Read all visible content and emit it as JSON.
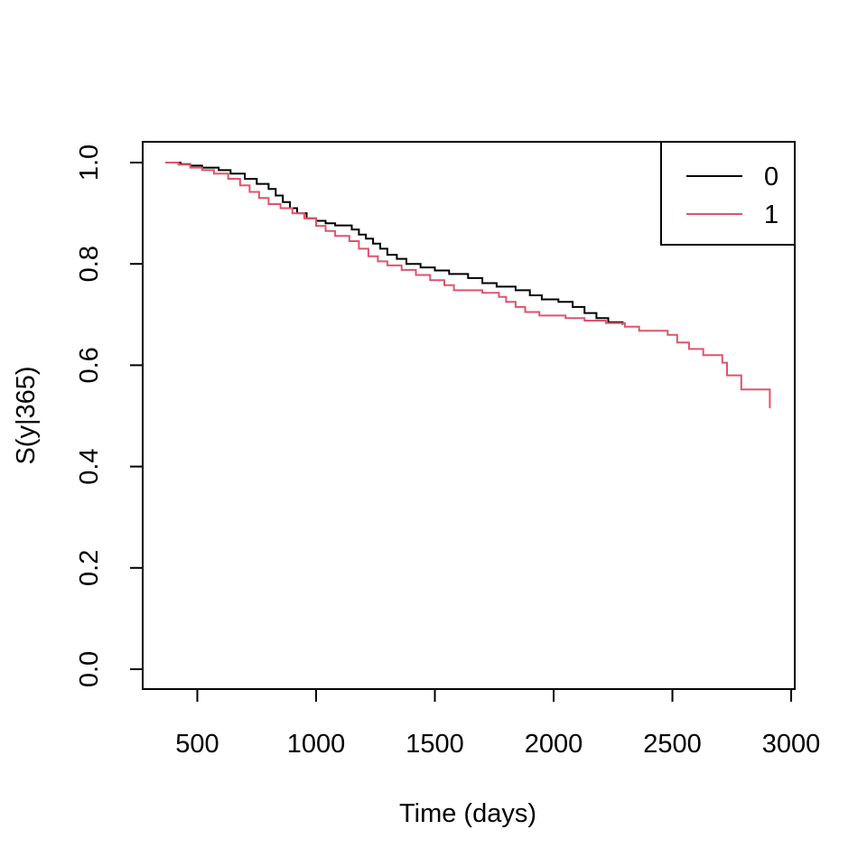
{
  "chart_data": {
    "type": "line",
    "title": "",
    "xlabel": "Time (days)",
    "ylabel": "S(y|365)",
    "xlim": [
      365,
      2920
    ],
    "ylim": [
      0,
      1
    ],
    "x_ticks": [
      500,
      1000,
      1500,
      2000,
      2500,
      3000
    ],
    "y_ticks": [
      0.0,
      0.2,
      0.4,
      0.6,
      0.8,
      1.0
    ],
    "y_tick_labels": [
      "0.0",
      "0.2",
      "0.4",
      "0.6",
      "0.8",
      "1.0"
    ],
    "grid": false,
    "legend": {
      "position": "top-right",
      "entries": [
        "0",
        "1"
      ]
    },
    "series": [
      {
        "name": "0",
        "color": "#000000",
        "step": true,
        "points": [
          [
            365,
            1.0
          ],
          [
            430,
            0.997
          ],
          [
            470,
            0.994
          ],
          [
            520,
            0.99
          ],
          [
            590,
            0.985
          ],
          [
            640,
            0.978
          ],
          [
            700,
            0.968
          ],
          [
            750,
            0.958
          ],
          [
            800,
            0.948
          ],
          [
            830,
            0.935
          ],
          [
            860,
            0.922
          ],
          [
            890,
            0.91
          ],
          [
            920,
            0.9
          ],
          [
            960,
            0.89
          ],
          [
            1000,
            0.885
          ],
          [
            1040,
            0.88
          ],
          [
            1080,
            0.876
          ],
          [
            1150,
            0.868
          ],
          [
            1180,
            0.858
          ],
          [
            1210,
            0.85
          ],
          [
            1240,
            0.84
          ],
          [
            1270,
            0.83
          ],
          [
            1300,
            0.818
          ],
          [
            1340,
            0.81
          ],
          [
            1380,
            0.8
          ],
          [
            1440,
            0.793
          ],
          [
            1500,
            0.787
          ],
          [
            1560,
            0.78
          ],
          [
            1640,
            0.772
          ],
          [
            1700,
            0.762
          ],
          [
            1760,
            0.755
          ],
          [
            1840,
            0.748
          ],
          [
            1900,
            0.738
          ],
          [
            1950,
            0.73
          ],
          [
            2020,
            0.725
          ],
          [
            2080,
            0.715
          ],
          [
            2130,
            0.703
          ],
          [
            2180,
            0.693
          ],
          [
            2230,
            0.685
          ],
          [
            2290,
            0.68
          ]
        ]
      },
      {
        "name": "1",
        "color": "#DF536B",
        "step": true,
        "points": [
          [
            365,
            1.0
          ],
          [
            420,
            0.996
          ],
          [
            470,
            0.99
          ],
          [
            520,
            0.985
          ],
          [
            570,
            0.978
          ],
          [
            630,
            0.968
          ],
          [
            680,
            0.955
          ],
          [
            720,
            0.942
          ],
          [
            760,
            0.93
          ],
          [
            800,
            0.918
          ],
          [
            850,
            0.91
          ],
          [
            900,
            0.9
          ],
          [
            950,
            0.89
          ],
          [
            1000,
            0.875
          ],
          [
            1040,
            0.865
          ],
          [
            1080,
            0.855
          ],
          [
            1140,
            0.845
          ],
          [
            1180,
            0.83
          ],
          [
            1220,
            0.815
          ],
          [
            1260,
            0.805
          ],
          [
            1300,
            0.797
          ],
          [
            1360,
            0.788
          ],
          [
            1420,
            0.778
          ],
          [
            1480,
            0.768
          ],
          [
            1540,
            0.758
          ],
          [
            1580,
            0.748
          ],
          [
            1700,
            0.743
          ],
          [
            1770,
            0.735
          ],
          [
            1800,
            0.725
          ],
          [
            1840,
            0.715
          ],
          [
            1880,
            0.705
          ],
          [
            1940,
            0.698
          ],
          [
            2050,
            0.693
          ],
          [
            2130,
            0.688
          ],
          [
            2220,
            0.683
          ],
          [
            2300,
            0.676
          ],
          [
            2360,
            0.668
          ],
          [
            2480,
            0.66
          ],
          [
            2520,
            0.645
          ],
          [
            2570,
            0.632
          ],
          [
            2630,
            0.62
          ],
          [
            2710,
            0.605
          ],
          [
            2730,
            0.58
          ],
          [
            2790,
            0.552
          ],
          [
            2910,
            0.515
          ]
        ]
      }
    ]
  }
}
